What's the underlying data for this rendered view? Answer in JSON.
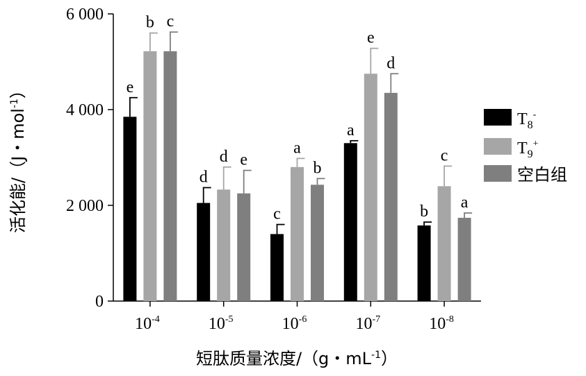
{
  "chart_data": {
    "type": "bar",
    "ylabel": "活化能/（J・mol",
    "ylabel_sup": "-1",
    "ylabel_end": "）",
    "xlabel": "短肽质量浓度/（g・mL",
    "xlabel_sup": "-1",
    "xlabel_end": "）",
    "ylim": [
      0,
      6000
    ],
    "yticks": [
      {
        "value": 0,
        "label": "0"
      },
      {
        "value": 2000,
        "label": "2 000"
      },
      {
        "value": 4000,
        "label": "4 000"
      },
      {
        "value": 6000,
        "label": "6 000"
      }
    ],
    "categories": [
      {
        "base": "10",
        "exp": "-4"
      },
      {
        "base": "10",
        "exp": "-5"
      },
      {
        "base": "10",
        "exp": "-6"
      },
      {
        "base": "10",
        "exp": "-7"
      },
      {
        "base": "10",
        "exp": "-8"
      }
    ],
    "series": [
      {
        "name_base": "T",
        "name_sub": "8",
        "name_sup": "-",
        "color": "#000000",
        "values": [
          3850,
          2050,
          1400,
          3300,
          1580
        ],
        "errors": [
          400,
          320,
          200,
          50,
          70
        ],
        "letters": [
          "e",
          "d",
          "c",
          "a",
          "b"
        ]
      },
      {
        "name_base": "T",
        "name_sub": "9",
        "name_sup": "+",
        "color": "#a6a6a6",
        "values": [
          5220,
          2330,
          2800,
          4750,
          2400
        ],
        "errors": [
          380,
          470,
          180,
          530,
          420
        ],
        "letters": [
          "b",
          "d",
          "a",
          "e",
          "c"
        ]
      },
      {
        "name": "空白组",
        "color": "#7f7f7f",
        "values": [
          5220,
          2250,
          2430,
          4350,
          1740
        ],
        "errors": [
          400,
          480,
          130,
          400,
          100
        ],
        "letters": [
          "c",
          "e",
          "b",
          "d",
          "a"
        ]
      }
    ],
    "legend_position": "right",
    "grid": false
  }
}
